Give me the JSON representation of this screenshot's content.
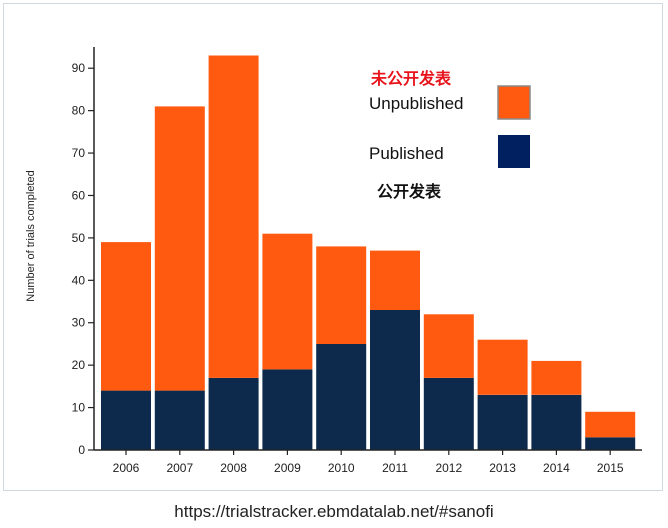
{
  "chart_data": {
    "type": "bar",
    "stacked": true,
    "categories": [
      "2006",
      "2007",
      "2008",
      "2009",
      "2010",
      "2011",
      "2012",
      "2013",
      "2014",
      "2015"
    ],
    "series": [
      {
        "name": "Published",
        "values": [
          14,
          14,
          17,
          19,
          25,
          33,
          17,
          13,
          13,
          3
        ],
        "color": "#0d2a4d"
      },
      {
        "name": "Unpublished",
        "values": [
          35,
          67,
          76,
          32,
          23,
          14,
          15,
          13,
          8,
          6
        ],
        "color": "#ff5a10"
      }
    ],
    "ylabel": "Number of trials completed",
    "ylim": [
      0,
      95
    ],
    "yticks": [
      0,
      10,
      20,
      30,
      40,
      50,
      60,
      70,
      80,
      90
    ],
    "grid": false,
    "legend": {
      "placement": "top-right",
      "unpublished_label": "Unpublished",
      "unpublished_label_cn": "未公开发表",
      "unpublished_color": "#ff5a10",
      "published_label": "Published",
      "published_label_cn": "公开发表",
      "published_color": "#002060"
    }
  },
  "source_url": "https://trialstracker.ebmdatalab.net/#sanofi"
}
